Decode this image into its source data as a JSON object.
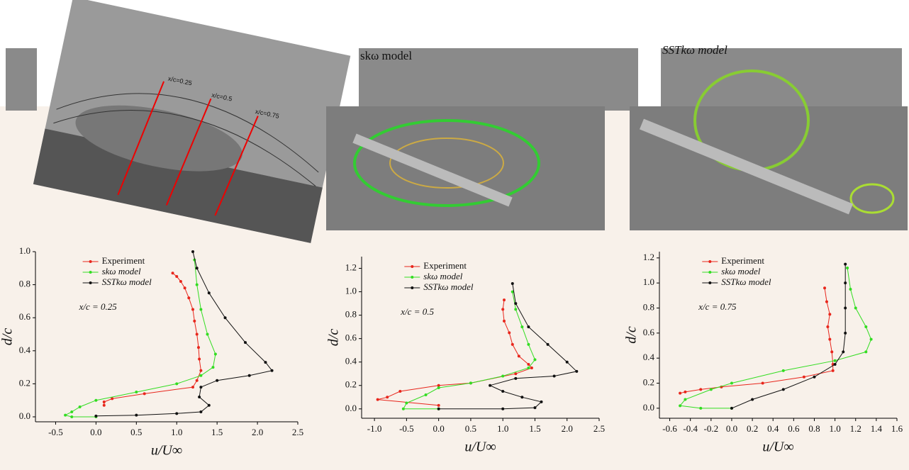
{
  "images": {
    "labels": [
      "x/c=0.25",
      "x/c=0.5",
      "x/c=0.75"
    ],
    "middle_title": "skω model",
    "right_title": "SSTkω model"
  },
  "chart_data": [
    {
      "type": "line",
      "x_label": "u/U∞",
      "y_label": "d/c",
      "annotation": "x/c = 0.25",
      "legend": "upper left",
      "xlim": [
        -0.75,
        2.5
      ],
      "xticks": [
        -0.5,
        {
          "value": 0,
          "label": "0.0"
        },
        0.5,
        {
          "value": 1,
          "label": "1.0"
        },
        1.5,
        {
          "value": 2,
          "label": "2.0"
        },
        2.5
      ],
      "ylim": [
        -0.03,
        1.0
      ],
      "yticks": [
        {
          "value": 0,
          "label": "0.0"
        },
        0.2,
        0.4,
        0.6,
        0.8,
        {
          "value": 1,
          "label": "1.0"
        }
      ],
      "series": [
        {
          "name": "Experiment",
          "color": "#e8261c",
          "x": [
            0.95,
            1.0,
            1.05,
            1.1,
            1.15,
            1.2,
            1.22,
            1.25,
            1.27,
            1.28,
            1.3,
            1.25,
            1.2,
            0.6,
            0.2,
            0.1,
            0.1
          ],
          "values": [
            0.87,
            0.85,
            0.82,
            0.78,
            0.72,
            0.65,
            0.58,
            0.5,
            0.42,
            0.35,
            0.28,
            0.22,
            0.18,
            0.14,
            0.11,
            0.09,
            0.07
          ]
        },
        {
          "name": "skω model",
          "color": "#33dd22",
          "x": [
            1.22,
            1.25,
            1.3,
            1.38,
            1.48,
            1.45,
            1.3,
            1.0,
            0.5,
            0.0,
            -0.2,
            -0.3,
            -0.38,
            -0.3,
            0.0
          ],
          "values": [
            0.95,
            0.8,
            0.65,
            0.5,
            0.38,
            0.3,
            0.25,
            0.2,
            0.15,
            0.1,
            0.06,
            0.03,
            0.01,
            0.0,
            0.0
          ]
        },
        {
          "name": "SSTkω model",
          "color": "#111111",
          "x": [
            1.2,
            1.25,
            1.4,
            1.6,
            1.85,
            2.1,
            2.18,
            1.9,
            1.5,
            1.3,
            1.28,
            1.4,
            1.3,
            1.0,
            0.5,
            0.0
          ],
          "values": [
            1.0,
            0.9,
            0.75,
            0.6,
            0.45,
            0.33,
            0.28,
            0.25,
            0.22,
            0.18,
            0.12,
            0.07,
            0.03,
            0.02,
            0.01,
            0.005
          ]
        }
      ]
    },
    {
      "type": "line",
      "x_label": "u/U∞",
      "y_label": "d/c",
      "annotation": "x/c = 0.5",
      "legend": "upper left",
      "xlim": [
        -1.2,
        2.5
      ],
      "xticks": [
        {
          "value": -1,
          "label": "-1.0"
        },
        -0.5,
        {
          "value": 0,
          "label": "0.0"
        },
        0.5,
        {
          "value": 1,
          "label": "1.0"
        },
        1.5,
        {
          "value": 2,
          "label": "2.0"
        },
        2.5
      ],
      "ylim": [
        -0.08,
        1.3
      ],
      "yticks": [
        {
          "value": 0,
          "label": "0.0"
        },
        0.2,
        0.4,
        0.6,
        0.8,
        {
          "value": 1,
          "label": "1.0"
        },
        1.2
      ],
      "series": [
        {
          "name": "Experiment",
          "color": "#e8261c",
          "x": [
            1.02,
            1.0,
            1.02,
            1.1,
            1.15,
            1.25,
            1.4,
            1.45,
            1.2,
            0.5,
            0.0,
            -0.6,
            -0.8,
            -0.95,
            0.0
          ],
          "values": [
            0.93,
            0.85,
            0.75,
            0.65,
            0.55,
            0.45,
            0.38,
            0.35,
            0.3,
            0.22,
            0.2,
            0.15,
            0.1,
            0.08,
            0.03
          ]
        },
        {
          "name": "skω model",
          "color": "#33dd22",
          "x": [
            1.15,
            1.2,
            1.3,
            1.4,
            1.5,
            1.4,
            1.0,
            0.5,
            0.0,
            -0.2,
            -0.5,
            -0.55,
            0.0
          ],
          "values": [
            1.0,
            0.85,
            0.7,
            0.55,
            0.42,
            0.35,
            0.28,
            0.22,
            0.18,
            0.12,
            0.05,
            0.0,
            0.0
          ]
        },
        {
          "name": "SSTkω model",
          "color": "#111111",
          "x": [
            1.15,
            1.2,
            1.4,
            1.7,
            2.0,
            2.15,
            1.8,
            1.2,
            0.8,
            1.0,
            1.3,
            1.6,
            1.5,
            1.0,
            0.0
          ],
          "values": [
            1.07,
            0.9,
            0.7,
            0.55,
            0.4,
            0.32,
            0.28,
            0.26,
            0.2,
            0.15,
            0.1,
            0.06,
            0.01,
            0.0,
            0.0
          ]
        }
      ]
    },
    {
      "type": "line",
      "x_label": "u/U∞",
      "y_label": "d/c",
      "annotation": "x/c = 0.75",
      "legend": "upper left",
      "xlim": [
        -0.7,
        1.6
      ],
      "xticks": [
        -0.6,
        -0.4,
        -0.2,
        {
          "value": 0,
          "label": "0.0"
        },
        0.2,
        0.4,
        0.6,
        0.8,
        {
          "value": 1,
          "label": "1.0"
        },
        1.2,
        1.4,
        1.6
      ],
      "ylim": [
        -0.08,
        1.25
      ],
      "yticks": [
        {
          "value": 0,
          "label": "0.0"
        },
        0.2,
        0.4,
        0.6,
        0.8,
        {
          "value": 1,
          "label": "1.0"
        },
        1.2
      ],
      "series": [
        {
          "name": "Experiment",
          "color": "#e8261c",
          "x": [
            0.9,
            0.92,
            0.95,
            0.93,
            0.95,
            0.97,
            0.98,
            0.98,
            0.7,
            0.3,
            -0.1,
            -0.3,
            -0.45,
            -0.5
          ],
          "values": [
            0.96,
            0.85,
            0.75,
            0.65,
            0.55,
            0.45,
            0.35,
            0.3,
            0.25,
            0.2,
            0.17,
            0.15,
            0.13,
            0.12
          ]
        },
        {
          "name": "skω model",
          "color": "#33dd22",
          "x": [
            1.12,
            1.15,
            1.2,
            1.3,
            1.35,
            1.3,
            1.0,
            0.5,
            0.0,
            -0.2,
            -0.45,
            -0.5,
            -0.3,
            0.0
          ],
          "values": [
            1.12,
            0.95,
            0.8,
            0.65,
            0.55,
            0.45,
            0.38,
            0.3,
            0.2,
            0.15,
            0.07,
            0.02,
            0.0,
            0.0
          ]
        },
        {
          "name": "SSTkω model",
          "color": "#111111",
          "x": [
            1.1,
            1.1,
            1.1,
            1.1,
            1.08,
            1.0,
            0.8,
            0.5,
            0.2,
            0.0
          ],
          "values": [
            1.15,
            1.0,
            0.8,
            0.6,
            0.45,
            0.35,
            0.25,
            0.15,
            0.07,
            0.0
          ]
        }
      ]
    }
  ]
}
